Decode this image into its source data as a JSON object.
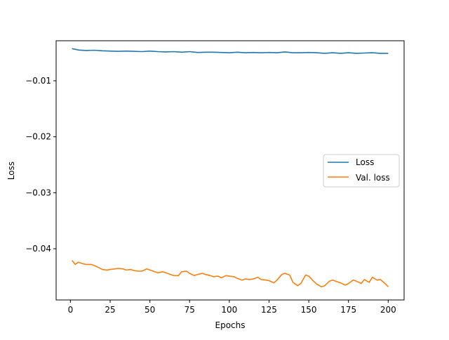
{
  "chart_data": {
    "type": "line",
    "xlabel": "Epochs",
    "ylabel": "Loss",
    "xlim": [
      -9,
      210
    ],
    "ylim": [
      -0.04915,
      -0.00285
    ],
    "xticks": [
      0,
      25,
      50,
      75,
      100,
      125,
      150,
      175,
      200
    ],
    "yticks": [
      -0.01,
      -0.02,
      -0.03,
      -0.04
    ],
    "ytick_labels": [
      "−0.01",
      "−0.02",
      "−0.03",
      "−0.04"
    ],
    "legend": {
      "placement": "center-right"
    },
    "series": [
      {
        "name": "Loss",
        "color": "#1f77b4",
        "x": [
          1,
          5,
          10,
          15,
          20,
          25,
          30,
          35,
          40,
          45,
          50,
          55,
          60,
          65,
          70,
          75,
          80,
          85,
          90,
          95,
          100,
          105,
          110,
          115,
          120,
          125,
          130,
          135,
          140,
          145,
          150,
          155,
          160,
          165,
          170,
          175,
          180,
          185,
          190,
          195,
          200
        ],
        "y": [
          -0.00425,
          -0.0045,
          -0.0046,
          -0.00455,
          -0.00465,
          -0.0047,
          -0.00475,
          -0.0047,
          -0.00475,
          -0.0048,
          -0.0047,
          -0.0048,
          -0.00485,
          -0.0048,
          -0.0049,
          -0.0048,
          -0.00495,
          -0.0049,
          -0.0049,
          -0.00495,
          -0.005,
          -0.0049,
          -0.005,
          -0.00495,
          -0.005,
          -0.00495,
          -0.005,
          -0.00485,
          -0.005,
          -0.005,
          -0.00495,
          -0.005,
          -0.0051,
          -0.005,
          -0.0051,
          -0.005,
          -0.0051,
          -0.00505,
          -0.005,
          -0.0051,
          -0.0051
        ]
      },
      {
        "name": "Val. loss",
        "color": "#ff7f0e",
        "x": [
          1,
          3,
          5,
          8,
          10,
          13,
          15,
          18,
          20,
          23,
          25,
          28,
          30,
          33,
          35,
          38,
          40,
          43,
          45,
          48,
          50,
          53,
          55,
          58,
          60,
          63,
          65,
          68,
          70,
          73,
          75,
          78,
          80,
          83,
          85,
          88,
          90,
          93,
          95,
          98,
          100,
          103,
          105,
          108,
          110,
          113,
          115,
          118,
          120,
          123,
          125,
          128,
          130,
          133,
          135,
          138,
          140,
          143,
          145,
          148,
          150,
          153,
          155,
          158,
          160,
          163,
          165,
          168,
          170,
          173,
          175,
          178,
          180,
          183,
          185,
          188,
          190,
          193,
          195,
          198,
          200
        ],
        "y": [
          -0.0421,
          -0.0428,
          -0.0424,
          -0.0427,
          -0.0428,
          -0.0428,
          -0.043,
          -0.0434,
          -0.0437,
          -0.0438,
          -0.0437,
          -0.0436,
          -0.0435,
          -0.0436,
          -0.0438,
          -0.0437,
          -0.0439,
          -0.044,
          -0.044,
          -0.0436,
          -0.0438,
          -0.0441,
          -0.0443,
          -0.0441,
          -0.0443,
          -0.0446,
          -0.0448,
          -0.0448,
          -0.0441,
          -0.044,
          -0.0444,
          -0.0448,
          -0.0446,
          -0.0444,
          -0.0446,
          -0.0448,
          -0.045,
          -0.0449,
          -0.0452,
          -0.0448,
          -0.0449,
          -0.045,
          -0.0453,
          -0.0456,
          -0.0454,
          -0.0455,
          -0.0454,
          -0.0451,
          -0.0455,
          -0.0456,
          -0.0457,
          -0.0461,
          -0.0456,
          -0.0446,
          -0.0444,
          -0.0447,
          -0.046,
          -0.0466,
          -0.0462,
          -0.0447,
          -0.0449,
          -0.0458,
          -0.0463,
          -0.0468,
          -0.0466,
          -0.0458,
          -0.0456,
          -0.0459,
          -0.0461,
          -0.0465,
          -0.0462,
          -0.0456,
          -0.0458,
          -0.0462,
          -0.0455,
          -0.046,
          -0.0451,
          -0.0456,
          -0.0455,
          -0.0462,
          -0.0468
        ]
      }
    ]
  }
}
